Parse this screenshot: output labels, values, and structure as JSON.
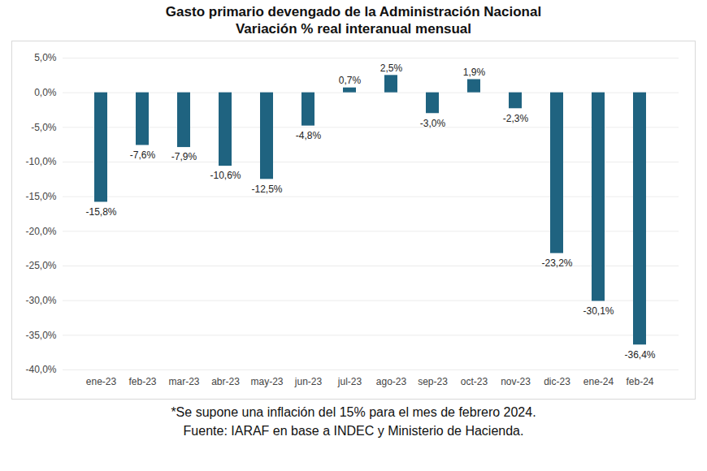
{
  "chart_data": {
    "type": "bar",
    "title": "Gasto primario devengado de la Administración Nacional",
    "subtitle": "Variación % real interanual mensual",
    "categories": [
      "ene-23",
      "feb-23",
      "mar-23",
      "abr-23",
      "may-23",
      "jun-23",
      "jul-23",
      "ago-23",
      "sep-23",
      "oct-23",
      "nov-23",
      "dic-23",
      "ene-24",
      "feb-24"
    ],
    "values": [
      -15.8,
      -7.6,
      -7.9,
      -10.6,
      -12.5,
      -4.8,
      0.7,
      2.5,
      -3.0,
      1.9,
      -2.3,
      -23.2,
      -30.1,
      -36.4
    ],
    "value_labels": [
      "-15,8%",
      "-7,6%",
      "-7,9%",
      "-10,6%",
      "-12,5%",
      "-4,8%",
      "0,7%",
      "2,5%",
      "-3,0%",
      "1,9%",
      "-2,3%",
      "-23,2%",
      "-30,1%",
      "-36,4%"
    ],
    "color": "#1f6380",
    "ylim": [
      -40,
      5
    ],
    "yticks": [
      {
        "value": 5,
        "label": "5,0%"
      },
      {
        "value": 0,
        "label": "0,0%"
      },
      {
        "value": -5,
        "label": "-5,0%"
      },
      {
        "value": -10,
        "label": "-10,0%"
      },
      {
        "value": -15,
        "label": "-15,0%"
      },
      {
        "value": -20,
        "label": "-20,0%"
      },
      {
        "value": -25,
        "label": "-25,0%"
      },
      {
        "value": -30,
        "label": "-30,0%"
      },
      {
        "value": -35,
        "label": "-35,0%"
      },
      {
        "value": -40,
        "label": "-40,0%"
      }
    ],
    "grid": true,
    "data_labels": true,
    "notes": [
      "*Se supone una inflación del 15% para el mes de febrero 2024.",
      "Fuente: IARAF en base a INDEC y Ministerio de Hacienda."
    ]
  }
}
